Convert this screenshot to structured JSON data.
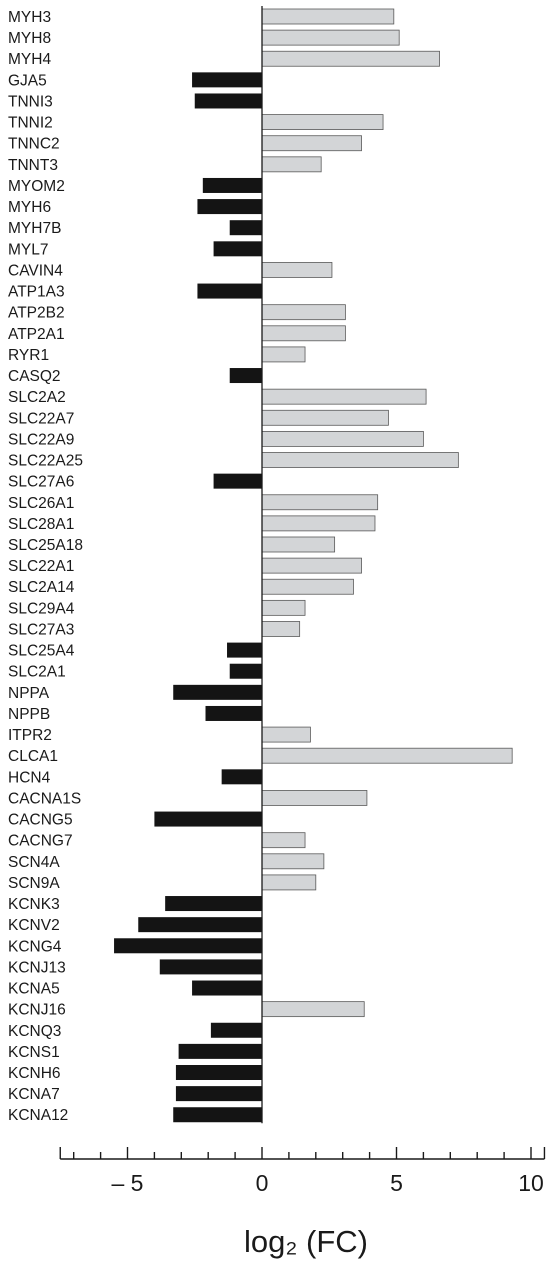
{
  "chart_data": {
    "type": "bar",
    "orientation": "horizontal",
    "title": "",
    "xlabel": "log₂ (FC)",
    "ylabel": "",
    "xlim": [
      -7.5,
      10.5
    ],
    "xticks": [
      -5,
      0,
      5,
      10
    ],
    "xtick_labels": [
      "– 5",
      "0",
      "5",
      "10"
    ],
    "categories": [
      "MYH3",
      "MYH8",
      "MYH4",
      "GJA5",
      "TNNI3",
      "TNNI2",
      "TNNC2",
      "TNNT3",
      "MYOM2",
      "MYH6",
      "MYH7B",
      "MYL7",
      "CAVIN4",
      "ATP1A3",
      "ATP2B2",
      "ATP2A1",
      "RYR1",
      "CASQ2",
      "SLC2A2",
      "SLC22A7",
      "SLC22A9",
      "SLC22A25",
      "SLC27A6",
      "SLC26A1",
      "SLC28A1",
      "SLC25A18",
      "SLC22A1",
      "SLC2A14",
      "SLC29A4",
      "SLC27A3",
      "SLC25A4",
      "SLC2A1",
      "NPPA",
      "NPPB",
      "ITPR2",
      "CLCA1",
      "HCN4",
      "CACNA1S",
      "CACNG5",
      "CACNG7",
      "SCN4A",
      "SCN9A",
      "KCNK3",
      "KCNV2",
      "KCNG4",
      "KCNJ13",
      "KCNA5",
      "KCNJ16",
      "KCNQ3",
      "KCNS1",
      "KCNH6",
      "KCNA7",
      "KCNA12"
    ],
    "values": [
      4.9,
      5.1,
      6.6,
      -2.6,
      -2.5,
      4.5,
      3.7,
      2.2,
      -2.2,
      -2.4,
      -1.2,
      -1.8,
      2.6,
      -2.4,
      3.1,
      3.1,
      1.6,
      -1.2,
      6.1,
      4.7,
      6.0,
      7.3,
      -1.8,
      4.3,
      4.2,
      2.7,
      3.7,
      3.4,
      1.6,
      1.4,
      -1.3,
      -1.2,
      -3.3,
      -2.1,
      1.8,
      9.3,
      -1.5,
      3.9,
      -4.0,
      1.6,
      2.3,
      2.0,
      -3.6,
      -4.6,
      -5.5,
      -3.8,
      -2.6,
      3.8,
      -1.9,
      -3.1,
      -3.2,
      -3.2,
      -3.3
    ],
    "colors": {
      "up": "#d3d5d7",
      "up_stroke": "#5a5a5a",
      "down": "#141414",
      "text": "#1a1a1a",
      "axis": "#1a1a1a"
    },
    "grid": false,
    "legend": "none"
  }
}
